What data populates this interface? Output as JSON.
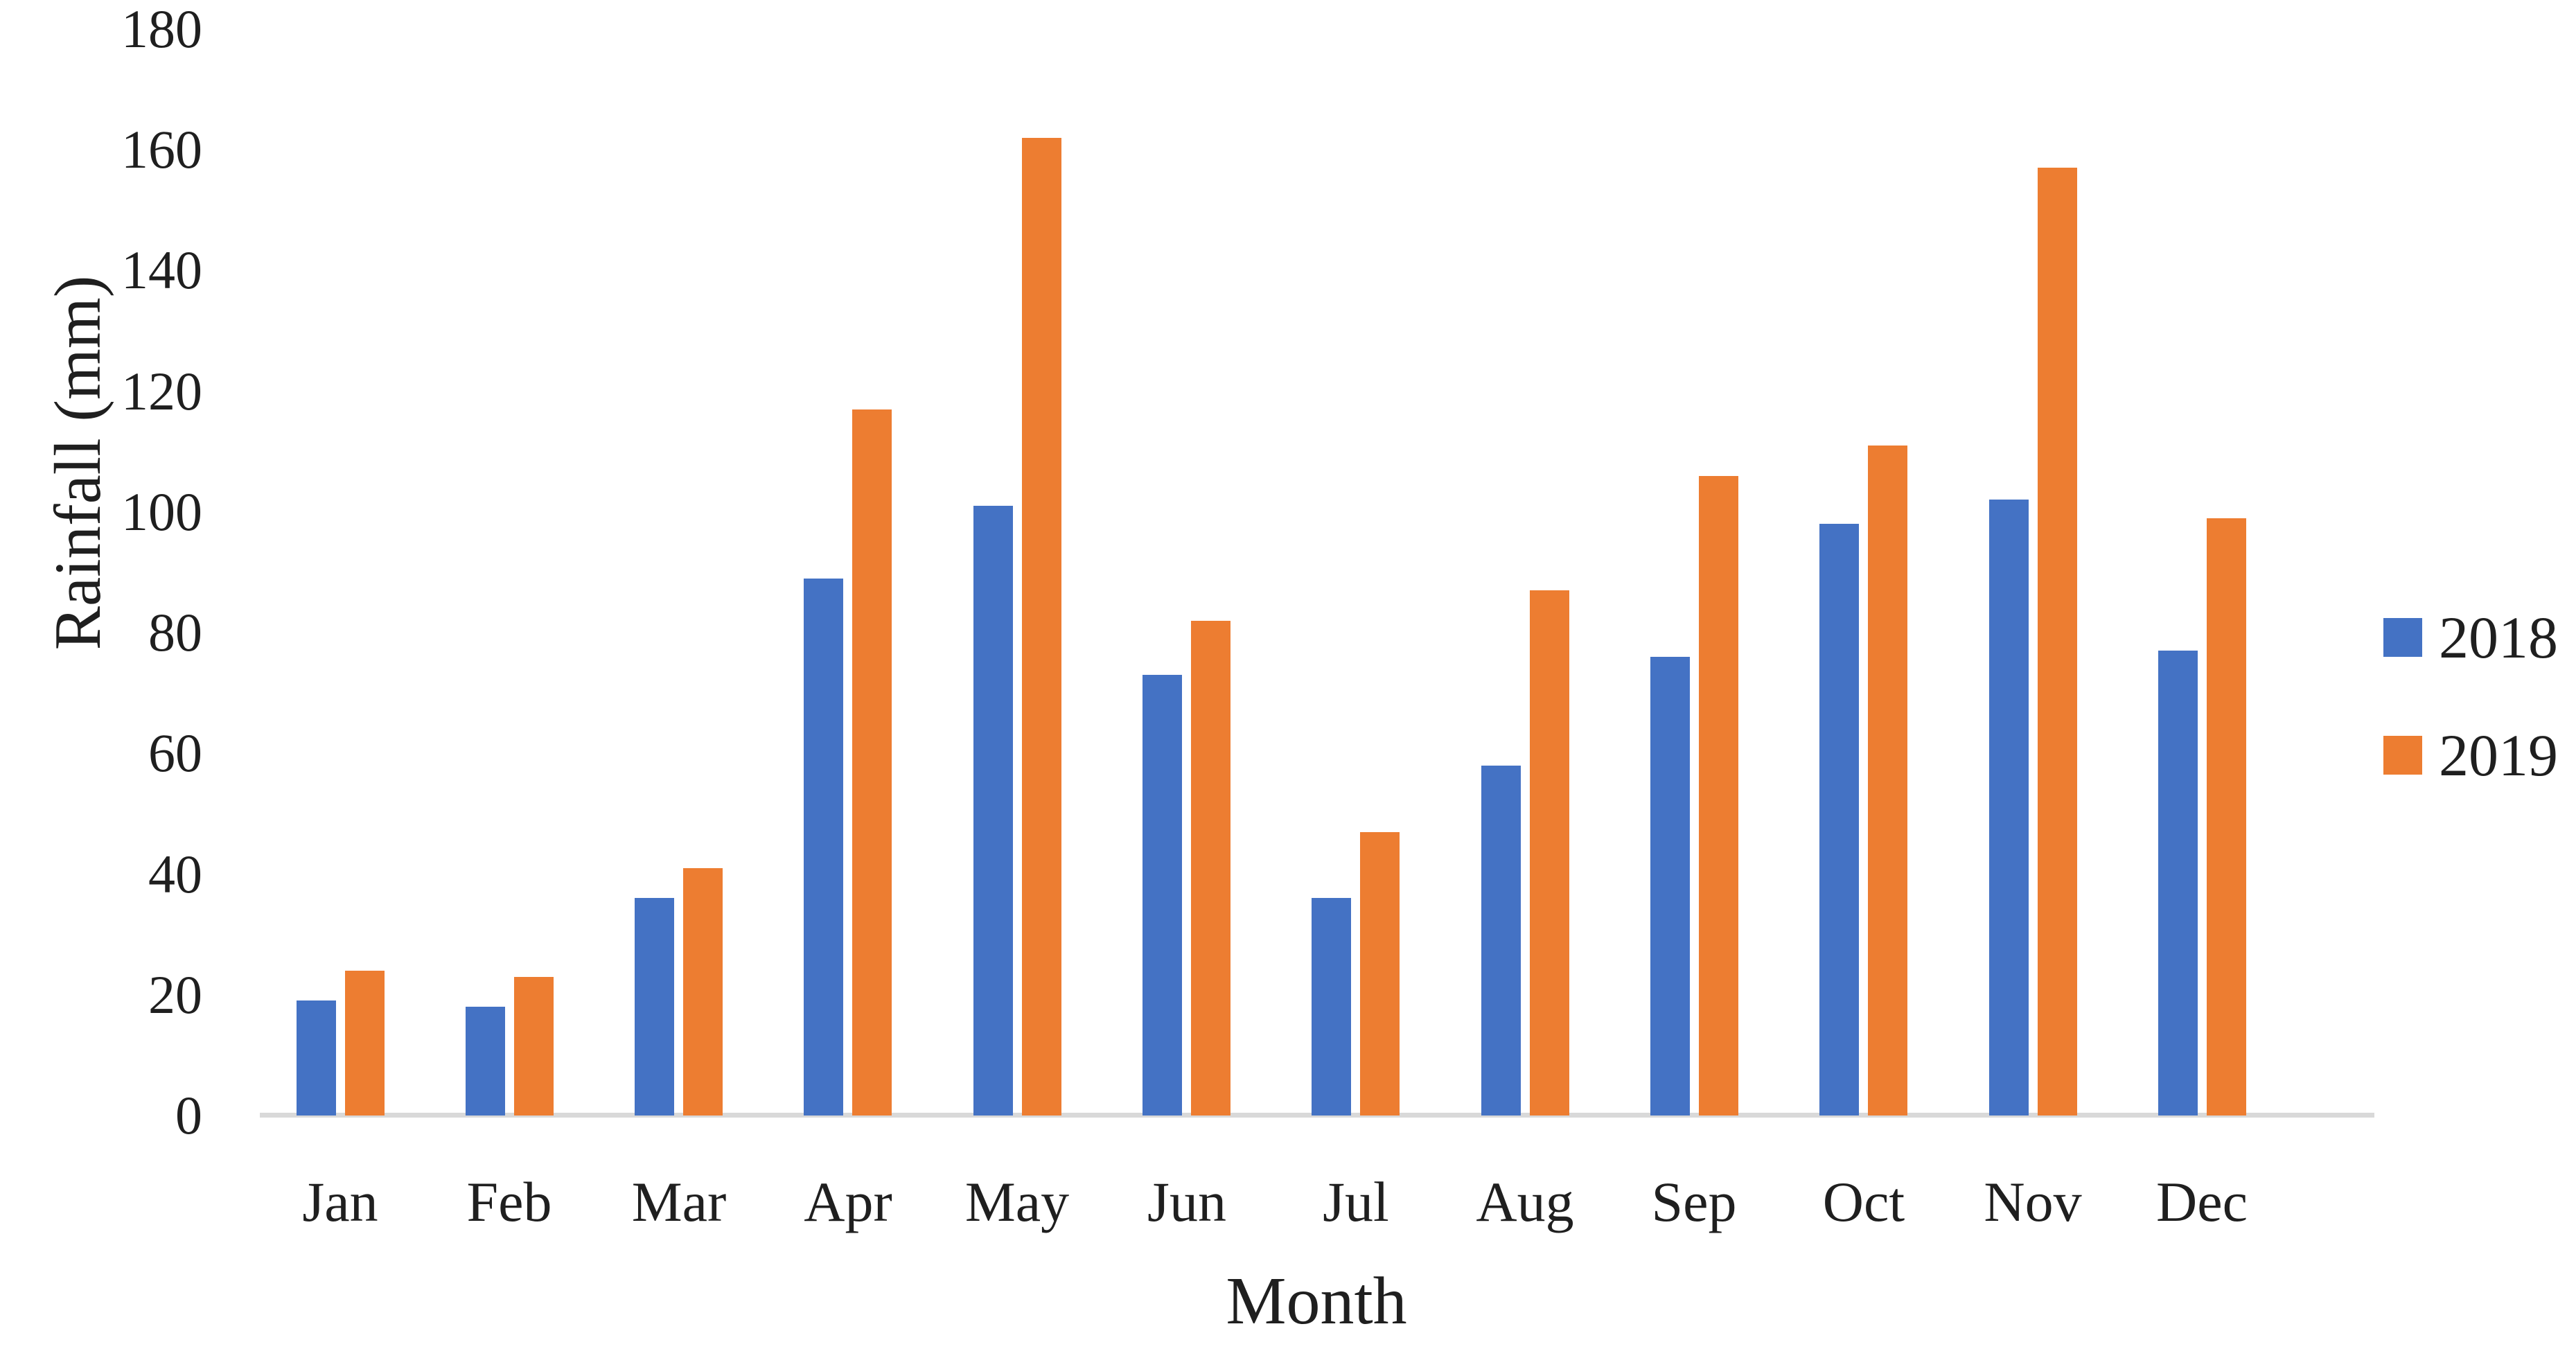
{
  "chart_data": {
    "type": "bar",
    "title": "",
    "categories": [
      "Jan",
      "Feb",
      "Mar",
      "Apr",
      "May",
      "Jun",
      "Jul",
      "Aug",
      "Sep",
      "Oct",
      "Nov",
      "Dec"
    ],
    "series": [
      {
        "name": "2018",
        "color": "#4472C4",
        "values": [
          19,
          18,
          36,
          89,
          101,
          73,
          36,
          58,
          76,
          98,
          102,
          77
        ]
      },
      {
        "name": "2019",
        "color": "#ED7D31",
        "values": [
          24,
          23,
          41,
          117,
          162,
          82,
          47,
          87,
          106,
          111,
          157,
          99
        ]
      }
    ],
    "xlabel": "Month",
    "ylabel": "Rainfall (mm)",
    "ylim": [
      0,
      180
    ],
    "ytick_step": 20,
    "yticks": [
      "0",
      "20",
      "40",
      "60",
      "80",
      "100",
      "120",
      "140",
      "160",
      "180"
    ],
    "legend_position": "right",
    "grid": false
  },
  "styles": {
    "axis_line_color": "#d9d9d9",
    "text_color": "#1f1f1f",
    "background": "#ffffff",
    "series_colors": {
      "2018": "#4472C4",
      "2019": "#ED7D31"
    }
  }
}
